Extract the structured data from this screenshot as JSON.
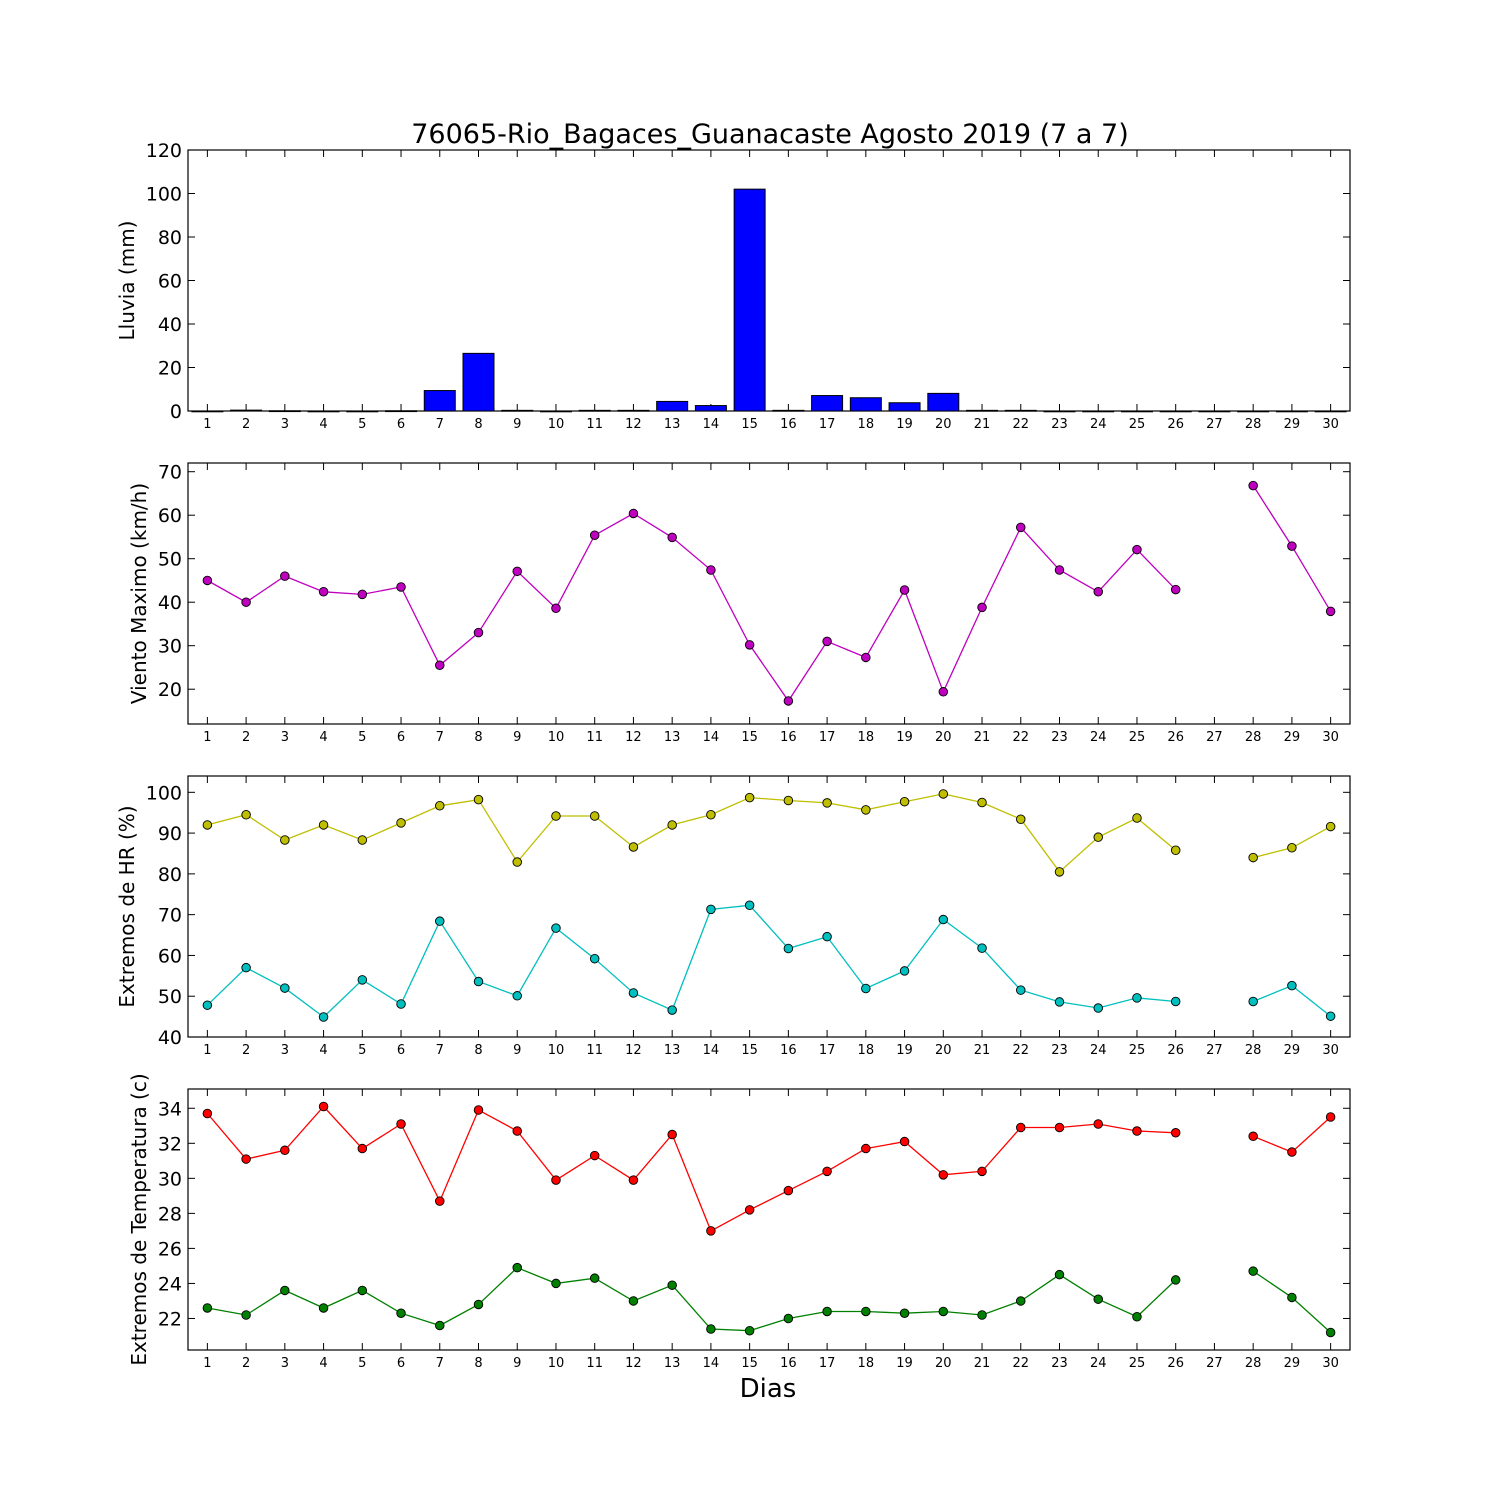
{
  "title": "76065-Rio_Bagaces_Guanacaste Agosto 2019  (7 a 7)",
  "xlabel": "Dias",
  "chart_data": [
    {
      "type": "bar",
      "ylabel": "Lluvia (mm)",
      "ylim": [
        0,
        120
      ],
      "yticks": [
        0,
        20,
        40,
        60,
        80,
        100,
        120
      ],
      "x_tick_labels": [
        "1",
        "2",
        "3",
        "4",
        "5",
        "6",
        "7",
        "8",
        "9",
        "10",
        "11",
        "12",
        "13",
        "14",
        "15",
        "16",
        "17",
        "18",
        "19",
        "20",
        "21",
        "22",
        "23",
        "24",
        "25",
        "26",
        "27",
        "28",
        "29",
        "30"
      ],
      "series": [
        {
          "color": "#0000ff",
          "points": [
            {
              "x": 1,
              "y": 0
            },
            {
              "x": 2,
              "y": 0.4
            },
            {
              "x": 3,
              "y": 0.1
            },
            {
              "x": 4,
              "y": 0
            },
            {
              "x": 5,
              "y": 0
            },
            {
              "x": 6,
              "y": 0.1
            },
            {
              "x": 7,
              "y": 9.4
            },
            {
              "x": 8,
              "y": 26.5
            },
            {
              "x": 9,
              "y": 0.3
            },
            {
              "x": 10,
              "y": 0
            },
            {
              "x": 11,
              "y": 0.3
            },
            {
              "x": 12,
              "y": 0.3
            },
            {
              "x": 13,
              "y": 4.4
            },
            {
              "x": 14,
              "y": 2.5
            },
            {
              "x": 15,
              "y": 102
            },
            {
              "x": 16,
              "y": 0.3
            },
            {
              "x": 17,
              "y": 7.1
            },
            {
              "x": 18,
              "y": 6.1
            },
            {
              "x": 19,
              "y": 3.8
            },
            {
              "x": 20,
              "y": 8.1
            },
            {
              "x": 21,
              "y": 0.3
            },
            {
              "x": 22,
              "y": 0.3
            },
            {
              "x": 23,
              "y": 0
            },
            {
              "x": 24,
              "y": 0
            },
            {
              "x": 25,
              "y": 0
            },
            {
              "x": 26,
              "y": 0
            },
            {
              "x": 27,
              "y": 0
            },
            {
              "x": 28,
              "y": 0
            },
            {
              "x": 29,
              "y": 0
            },
            {
              "x": 30,
              "y": 0
            }
          ]
        }
      ]
    },
    {
      "type": "line",
      "ylabel": "Viento Maximo (km/h)",
      "ylim": [
        12,
        72
      ],
      "yticks": [
        20,
        30,
        40,
        50,
        60,
        70
      ],
      "x_tick_labels": [
        "1",
        "2",
        "3",
        "4",
        "5",
        "6",
        "7",
        "8",
        "9",
        "10",
        "11",
        "12",
        "13",
        "14",
        "15",
        "16",
        "17",
        "18",
        "19",
        "20",
        "21",
        "22",
        "23",
        "24",
        "25",
        "26",
        "27",
        "28",
        "29",
        "30"
      ],
      "series": [
        {
          "color": "#bf00bf",
          "points": [
            {
              "x": 1,
              "y": 45
            },
            {
              "x": 2,
              "y": 40
            },
            {
              "x": 3,
              "y": 46
            },
            {
              "x": 4,
              "y": 42.4
            },
            {
              "x": 5,
              "y": 41.8
            },
            {
              "x": 6,
              "y": 43.5
            },
            {
              "x": 7,
              "y": 25.5
            },
            {
              "x": 8,
              "y": 33
            },
            {
              "x": 9,
              "y": 47.1
            },
            {
              "x": 10,
              "y": 38.6
            },
            {
              "x": 11,
              "y": 55.4
            },
            {
              "x": 12,
              "y": 60.4
            },
            {
              "x": 13,
              "y": 54.9
            },
            {
              "x": 14,
              "y": 47.4
            },
            {
              "x": 15,
              "y": 30.2
            },
            {
              "x": 16,
              "y": 17.3
            },
            {
              "x": 17,
              "y": 31
            },
            {
              "x": 18,
              "y": 27.3
            },
            {
              "x": 19,
              "y": 42.8
            },
            {
              "x": 20,
              "y": 19.4
            },
            {
              "x": 21,
              "y": 38.8
            },
            {
              "x": 22,
              "y": 57.2
            },
            {
              "x": 23,
              "y": 47.4
            },
            {
              "x": 24,
              "y": 42.4
            },
            {
              "x": 25,
              "y": 52.1
            },
            {
              "x": 26,
              "y": 42.9
            },
            {
              "x": 28,
              "y": 66.8
            },
            {
              "x": 29,
              "y": 52.9
            },
            {
              "x": 30,
              "y": 37.9
            }
          ]
        }
      ]
    },
    {
      "type": "line",
      "ylabel": "Extremos de HR (%)",
      "ylim": [
        40,
        104
      ],
      "yticks": [
        40,
        50,
        60,
        70,
        80,
        90,
        100
      ],
      "x_tick_labels": [
        "1",
        "2",
        "3",
        "4",
        "5",
        "6",
        "7",
        "8",
        "9",
        "10",
        "11",
        "12",
        "13",
        "14",
        "15",
        "16",
        "17",
        "18",
        "19",
        "20",
        "21",
        "22",
        "23",
        "24",
        "25",
        "26",
        "27",
        "28",
        "29",
        "30"
      ],
      "series": [
        {
          "color": "#bfbf00",
          "points": [
            {
              "x": 1,
              "y": 92
            },
            {
              "x": 2,
              "y": 94.5
            },
            {
              "x": 3,
              "y": 88.3
            },
            {
              "x": 4,
              "y": 92
            },
            {
              "x": 5,
              "y": 88.3
            },
            {
              "x": 6,
              "y": 92.5
            },
            {
              "x": 7,
              "y": 96.7
            },
            {
              "x": 8,
              "y": 98.2
            },
            {
              "x": 9,
              "y": 82.9
            },
            {
              "x": 10,
              "y": 94.2
            },
            {
              "x": 11,
              "y": 94.2
            },
            {
              "x": 12,
              "y": 86.6
            },
            {
              "x": 13,
              "y": 92
            },
            {
              "x": 14,
              "y": 94.5
            },
            {
              "x": 15,
              "y": 98.7
            },
            {
              "x": 16,
              "y": 98
            },
            {
              "x": 17,
              "y": 97.4
            },
            {
              "x": 18,
              "y": 95.7
            },
            {
              "x": 19,
              "y": 97.7
            },
            {
              "x": 20,
              "y": 99.6
            },
            {
              "x": 21,
              "y": 97.5
            },
            {
              "x": 22,
              "y": 93.4
            },
            {
              "x": 23,
              "y": 80.5
            },
            {
              "x": 24,
              "y": 89
            },
            {
              "x": 25,
              "y": 93.7
            },
            {
              "x": 26,
              "y": 85.8
            },
            {
              "x": 28,
              "y": 84
            },
            {
              "x": 29,
              "y": 86.4
            },
            {
              "x": 30,
              "y": 91.6
            }
          ]
        },
        {
          "color": "#00bfbf",
          "points": [
            {
              "x": 1,
              "y": 47.8
            },
            {
              "x": 2,
              "y": 57
            },
            {
              "x": 3,
              "y": 52
            },
            {
              "x": 4,
              "y": 44.9
            },
            {
              "x": 5,
              "y": 54
            },
            {
              "x": 6,
              "y": 48.1
            },
            {
              "x": 7,
              "y": 68.4
            },
            {
              "x": 8,
              "y": 53.6
            },
            {
              "x": 9,
              "y": 50.1
            },
            {
              "x": 10,
              "y": 66.7
            },
            {
              "x": 11,
              "y": 59.2
            },
            {
              "x": 12,
              "y": 50.8
            },
            {
              "x": 13,
              "y": 46.6
            },
            {
              "x": 14,
              "y": 71.3
            },
            {
              "x": 15,
              "y": 72.3
            },
            {
              "x": 16,
              "y": 61.7
            },
            {
              "x": 17,
              "y": 64.6
            },
            {
              "x": 18,
              "y": 51.9
            },
            {
              "x": 19,
              "y": 56.2
            },
            {
              "x": 20,
              "y": 68.8
            },
            {
              "x": 21,
              "y": 61.8
            },
            {
              "x": 22,
              "y": 51.5
            },
            {
              "x": 23,
              "y": 48.6
            },
            {
              "x": 24,
              "y": 47.1
            },
            {
              "x": 25,
              "y": 49.6
            },
            {
              "x": 26,
              "y": 48.7
            },
            {
              "x": 28,
              "y": 48.7
            },
            {
              "x": 29,
              "y": 52.6
            },
            {
              "x": 30,
              "y": 45.1
            }
          ]
        }
      ]
    },
    {
      "type": "line",
      "ylabel": "Extremos de Temperatura (c)",
      "ylim": [
        20.2,
        35.1
      ],
      "yticks": [
        22,
        24,
        26,
        28,
        30,
        32,
        34
      ],
      "x_tick_labels": [
        "1",
        "2",
        "3",
        "4",
        "5",
        "6",
        "7",
        "8",
        "9",
        "10",
        "11",
        "12",
        "13",
        "14",
        "15",
        "16",
        "17",
        "18",
        "19",
        "20",
        "21",
        "22",
        "23",
        "24",
        "25",
        "26",
        "27",
        "28",
        "29",
        "30"
      ],
      "series": [
        {
          "color": "#ff0000",
          "points": [
            {
              "x": 1,
              "y": 33.7
            },
            {
              "x": 2,
              "y": 31.1
            },
            {
              "x": 3,
              "y": 31.6
            },
            {
              "x": 4,
              "y": 34.1
            },
            {
              "x": 5,
              "y": 31.7
            },
            {
              "x": 6,
              "y": 33.1
            },
            {
              "x": 7,
              "y": 28.7
            },
            {
              "x": 8,
              "y": 33.9
            },
            {
              "x": 9,
              "y": 32.7
            },
            {
              "x": 10,
              "y": 29.9
            },
            {
              "x": 11,
              "y": 31.3
            },
            {
              "x": 12,
              "y": 29.9
            },
            {
              "x": 13,
              "y": 32.5
            },
            {
              "x": 14,
              "y": 27
            },
            {
              "x": 15,
              "y": 28.2
            },
            {
              "x": 16,
              "y": 29.3
            },
            {
              "x": 17,
              "y": 30.4
            },
            {
              "x": 18,
              "y": 31.7
            },
            {
              "x": 19,
              "y": 32.1
            },
            {
              "x": 20,
              "y": 30.2
            },
            {
              "x": 21,
              "y": 30.4
            },
            {
              "x": 22,
              "y": 32.9
            },
            {
              "x": 23,
              "y": 32.9
            },
            {
              "x": 24,
              "y": 33.1
            },
            {
              "x": 25,
              "y": 32.7
            },
            {
              "x": 26,
              "y": 32.6
            },
            {
              "x": 28,
              "y": 32.4
            },
            {
              "x": 29,
              "y": 31.5
            },
            {
              "x": 30,
              "y": 33.5
            }
          ]
        },
        {
          "color": "#008000",
          "points": [
            {
              "x": 1,
              "y": 22.6
            },
            {
              "x": 2,
              "y": 22.2
            },
            {
              "x": 3,
              "y": 23.6
            },
            {
              "x": 4,
              "y": 22.6
            },
            {
              "x": 5,
              "y": 23.6
            },
            {
              "x": 6,
              "y": 22.3
            },
            {
              "x": 7,
              "y": 21.6
            },
            {
              "x": 8,
              "y": 22.8
            },
            {
              "x": 9,
              "y": 24.9
            },
            {
              "x": 10,
              "y": 24
            },
            {
              "x": 11,
              "y": 24.3
            },
            {
              "x": 12,
              "y": 23
            },
            {
              "x": 13,
              "y": 23.9
            },
            {
              "x": 14,
              "y": 21.4
            },
            {
              "x": 15,
              "y": 21.3
            },
            {
              "x": 16,
              "y": 22
            },
            {
              "x": 17,
              "y": 22.4
            },
            {
              "x": 18,
              "y": 22.4
            },
            {
              "x": 19,
              "y": 22.3
            },
            {
              "x": 20,
              "y": 22.4
            },
            {
              "x": 21,
              "y": 22.2
            },
            {
              "x": 22,
              "y": 23
            },
            {
              "x": 23,
              "y": 24.5
            },
            {
              "x": 24,
              "y": 23.1
            },
            {
              "x": 25,
              "y": 22.1
            },
            {
              "x": 26,
              "y": 24.2
            },
            {
              "x": 28,
              "y": 24.7
            },
            {
              "x": 29,
              "y": 23.2
            },
            {
              "x": 30,
              "y": 21.2
            }
          ]
        }
      ]
    }
  ]
}
